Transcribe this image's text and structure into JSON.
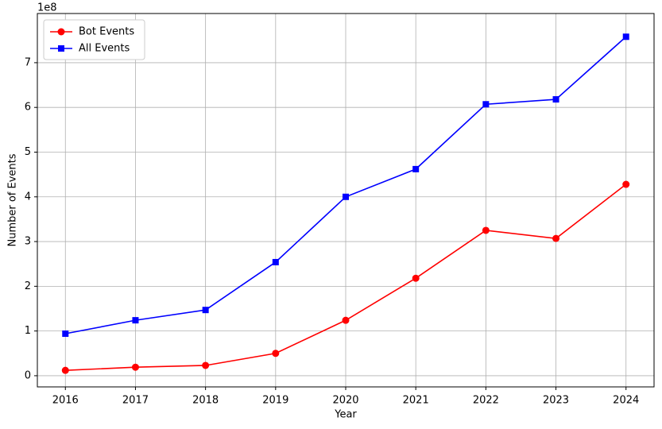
{
  "chart_data": {
    "type": "line",
    "x_label": "Year",
    "y_label": "Number of Events",
    "y_offset_label": "1e8",
    "x": [
      2016,
      2017,
      2018,
      2019,
      2020,
      2021,
      2022,
      2023,
      2024
    ],
    "series": [
      {
        "name": "Bot Events",
        "color": "#ff0000",
        "marker": "circle",
        "values": [
          0.12,
          0.19,
          0.23,
          0.5,
          1.24,
          2.18,
          3.25,
          3.07,
          4.28
        ]
      },
      {
        "name": "All Events",
        "color": "#0000ff",
        "marker": "square",
        "values": [
          0.94,
          1.24,
          1.47,
          2.54,
          4.0,
          4.62,
          6.07,
          6.18,
          7.58
        ]
      }
    ],
    "xlim": [
      2015.6,
      2024.4
    ],
    "xticks": [
      2016,
      2017,
      2018,
      2019,
      2020,
      2021,
      2022,
      2023,
      2024
    ],
    "ylim": [
      -0.25,
      8.1
    ],
    "yticks": [
      0,
      1,
      2,
      3,
      4,
      5,
      6,
      7
    ],
    "grid": true,
    "legend": "upper-left"
  }
}
